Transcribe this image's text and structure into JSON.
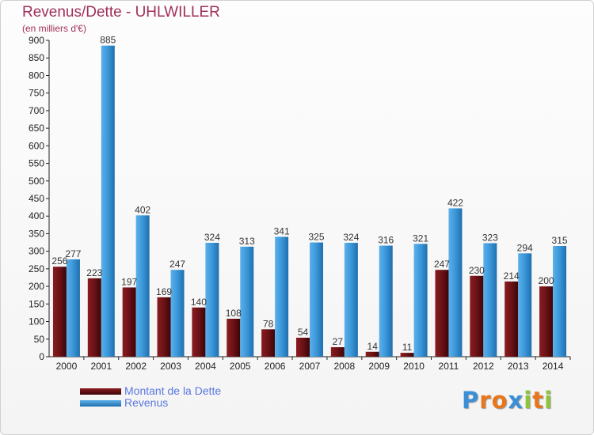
{
  "title": "Revenus/Dette - UHLWILLER",
  "subtitle": "(en milliers d'€)",
  "logo": {
    "text": "Proxiti",
    "letters": [
      {
        "char": "P",
        "color": "#3a8fd6"
      },
      {
        "char": "r",
        "color": "#e8761c"
      },
      {
        "char": "o",
        "color": "#e8761c"
      },
      {
        "char": "x",
        "color": "#3a8fd6"
      },
      {
        "char": "i",
        "color": "#8cc43c"
      },
      {
        "char": "t",
        "color": "#e8761c"
      },
      {
        "char": "i",
        "color": "#8cc43c"
      }
    ]
  },
  "colors": {
    "dette": "#6b1216",
    "revenus": "#3a96d8"
  },
  "chart_data": {
    "type": "bar",
    "title": "Revenus/Dette - UHLWILLER",
    "subtitle": "(en milliers d'€)",
    "categories": [
      "2000",
      "2001",
      "2002",
      "2003",
      "2004",
      "2005",
      "2006",
      "2007",
      "2008",
      "2009",
      "2010",
      "2011",
      "2012",
      "2013",
      "2014"
    ],
    "series": [
      {
        "name": "Montant de la Dette",
        "values": [
          256,
          223,
          197,
          169,
          140,
          108,
          78,
          54,
          27,
          14,
          11,
          247,
          230,
          214,
          200
        ]
      },
      {
        "name": "Revenus",
        "values": [
          277,
          885,
          402,
          247,
          324,
          313,
          341,
          325,
          324,
          316,
          321,
          422,
          323,
          294,
          315
        ]
      }
    ],
    "yticks": [
      "0",
      "50",
      "100",
      "150",
      "200",
      "250",
      "300",
      "350",
      "400",
      "450",
      "500",
      "550",
      "600",
      "650",
      "700",
      "750",
      "800",
      "850",
      "900"
    ],
    "ylim": [
      0,
      900
    ],
    "grid": false,
    "legend": "bottom-left"
  }
}
